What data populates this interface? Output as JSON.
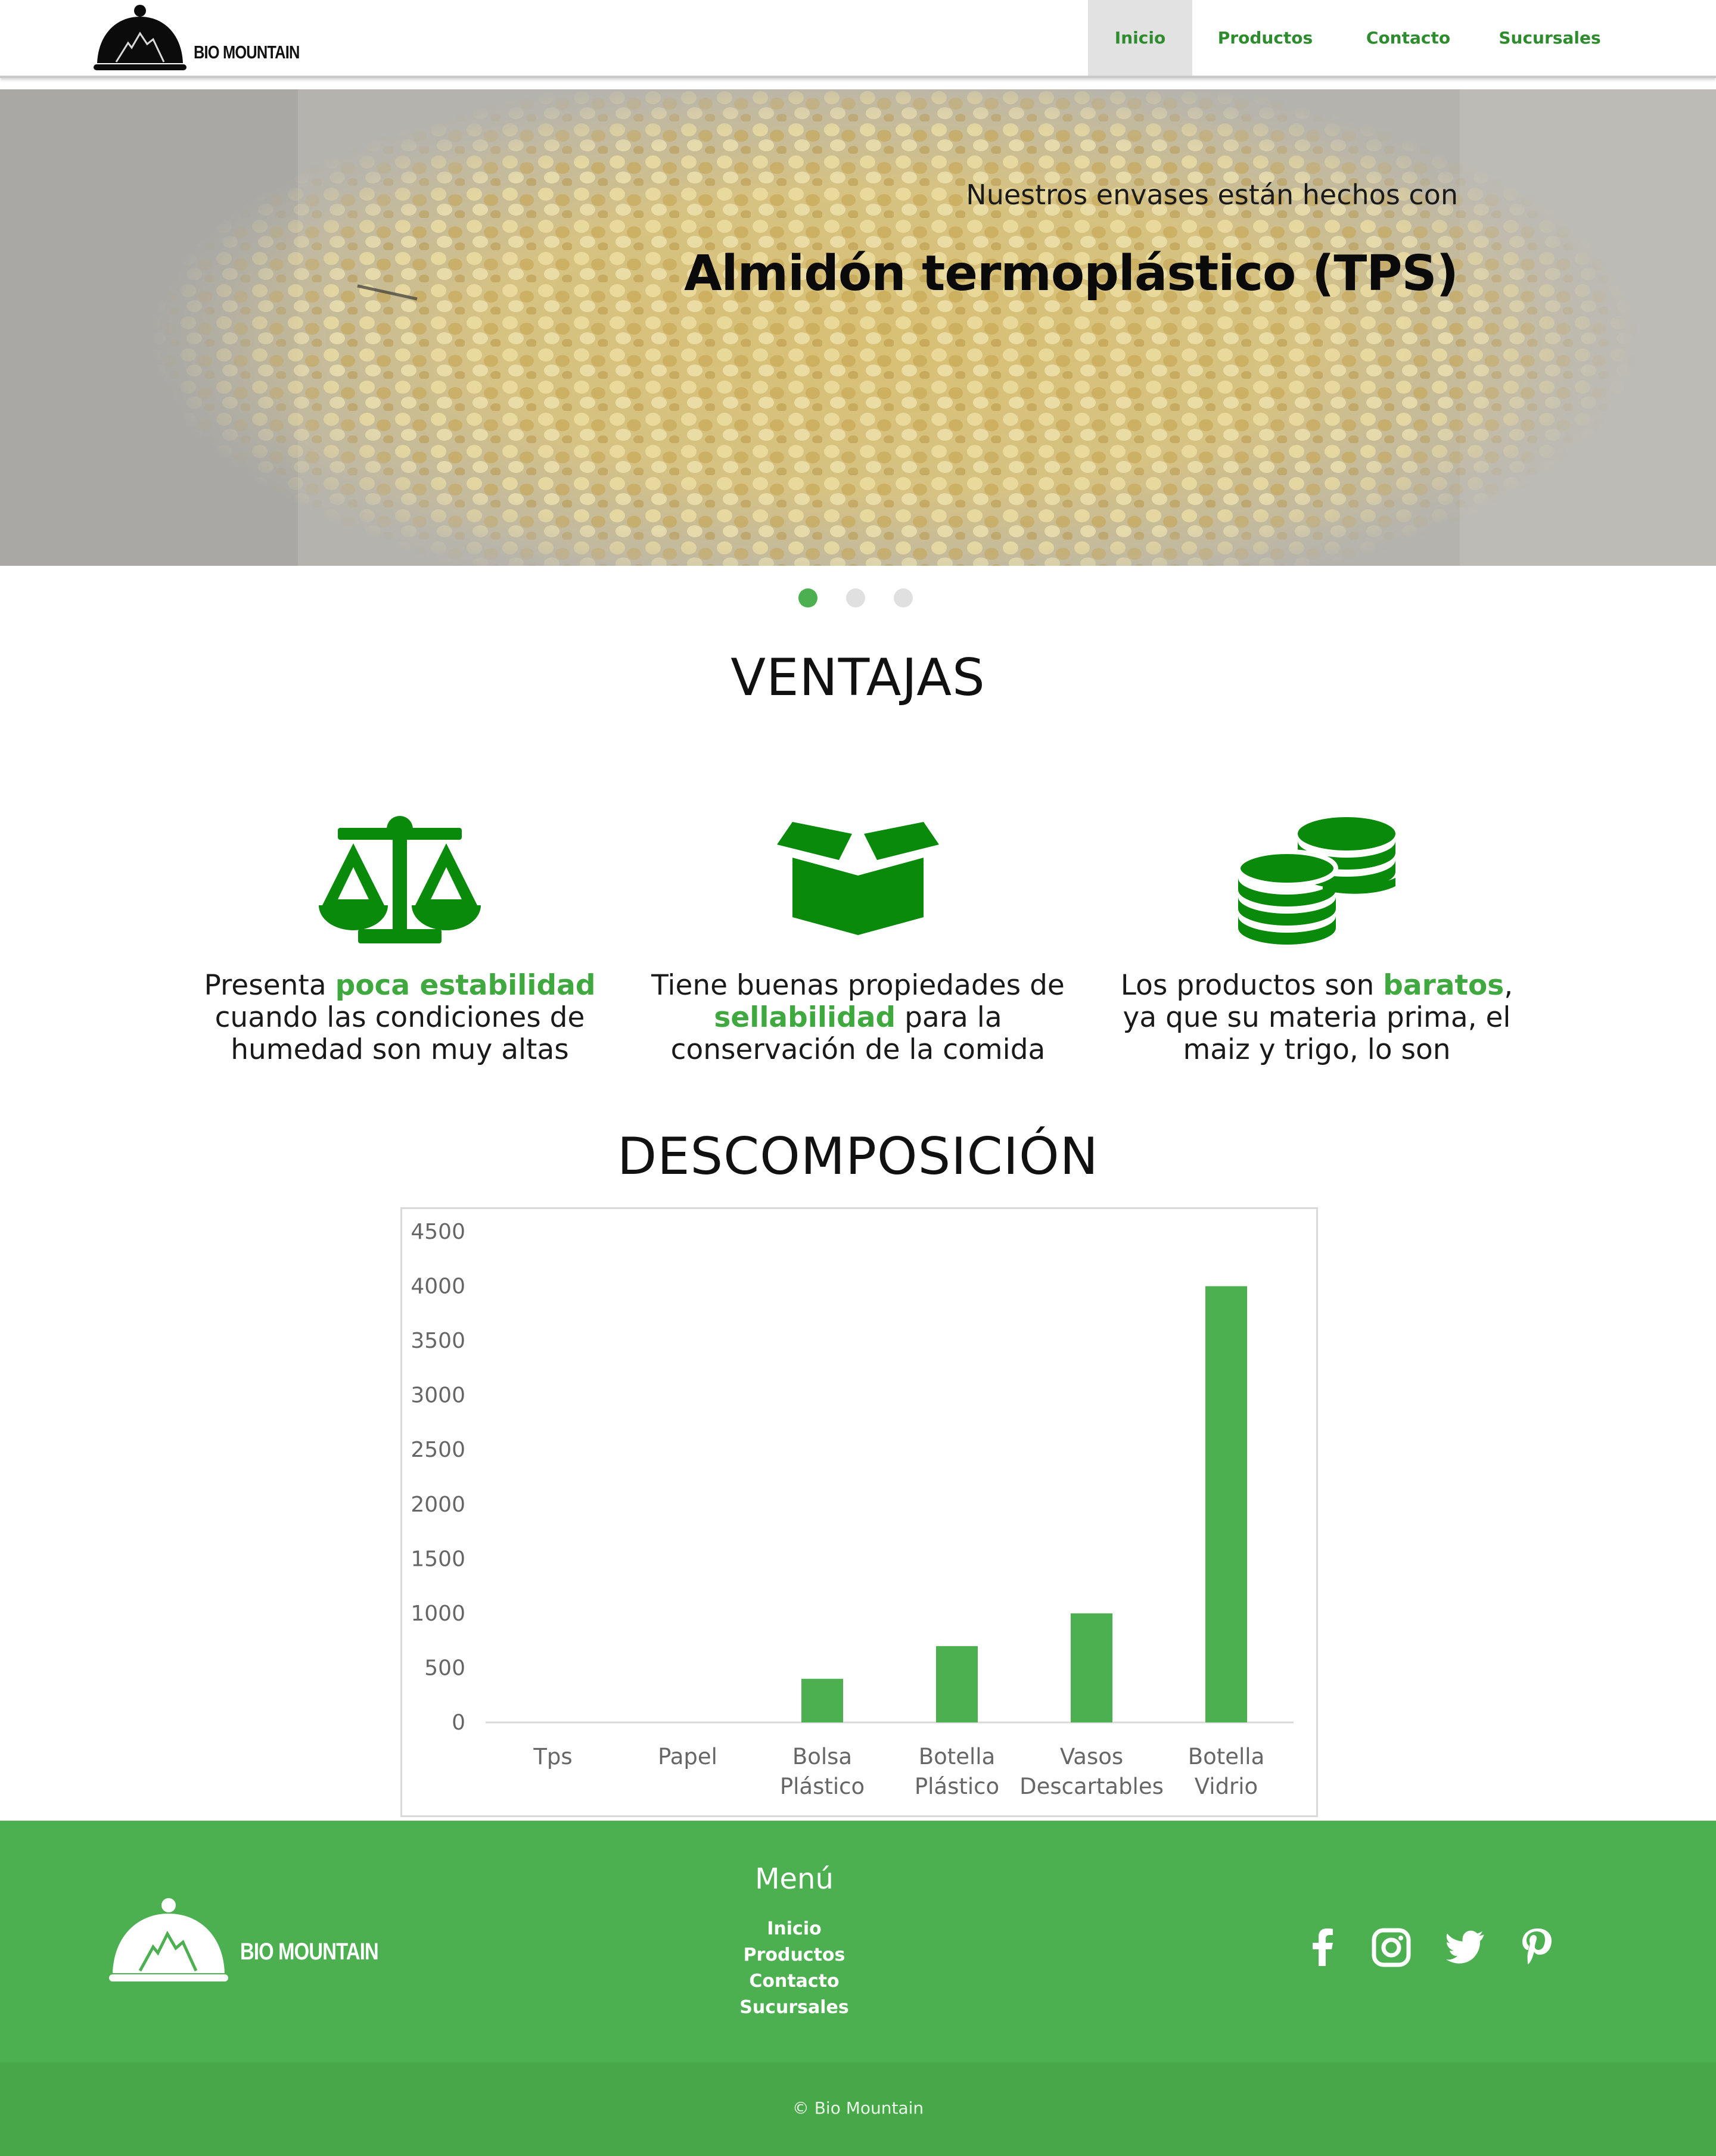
{
  "brand": {
    "name": "BIO MOUNTAIN",
    "accent": "#4caf50",
    "nav_text_color": "#2e8b2e",
    "icon_green": "#0a8a0a"
  },
  "nav": {
    "items": [
      {
        "label": "Inicio",
        "active": true
      },
      {
        "label": "Productos",
        "active": false
      },
      {
        "label": "Contacto",
        "active": false
      },
      {
        "label": "Sucursales",
        "active": false
      }
    ]
  },
  "hero": {
    "subtitle": "Nuestros envases están hechos con",
    "title": "Almidón termoplástico (TPS)",
    "slide_count": 3,
    "active_slide": 1
  },
  "ventajas": {
    "title": "VENTAJAS",
    "items": [
      {
        "icon": "scale-icon",
        "before": "Presenta ",
        "highlight": "poca estabilidad",
        "after": " cuando las condiciones de humedad son muy altas"
      },
      {
        "icon": "box-icon",
        "before": "Tiene buenas propiedades de ",
        "highlight": "sellabilidad",
        "after": " para la conservación de la comida"
      },
      {
        "icon": "coins-icon",
        "before": "Los productos son ",
        "highlight": "baratos",
        "after": ", ya que su materia prima, el maiz y trigo, lo son"
      }
    ]
  },
  "descomposicion": {
    "title": "DESCOMPOSICIÓN"
  },
  "chart_data": {
    "type": "bar",
    "categories": [
      "Tps",
      "Papel",
      "Bolsa Plástico",
      "Botella Plástico",
      "Vasos Descartables",
      "Botella Vidrio"
    ],
    "category_lines": [
      [
        "Tps"
      ],
      [
        "Papel"
      ],
      [
        "Bolsa",
        "Plástico"
      ],
      [
        "Botella",
        "Plástico"
      ],
      [
        "Vasos",
        "Descartables"
      ],
      [
        "Botella",
        "Vidrio"
      ]
    ],
    "values": [
      0,
      0,
      400,
      700,
      1000,
      4000
    ],
    "ylim": [
      0,
      4500
    ],
    "yticks": [
      0,
      500,
      1000,
      1500,
      2000,
      2500,
      3000,
      3500,
      4000,
      4500
    ],
    "title": "",
    "xlabel": "",
    "ylabel": "",
    "grid": false,
    "bar_color": "#4caf50"
  },
  "footer": {
    "logo_text": "BIO MOUNTAIN",
    "menu_title": "Menú",
    "links": [
      "Inicio",
      "Productos",
      "Contacto",
      "Sucursales"
    ],
    "socials": [
      "facebook-icon",
      "instagram-icon",
      "twitter-icon",
      "pinterest-icon"
    ],
    "copyright": "© Bio Mountain"
  }
}
